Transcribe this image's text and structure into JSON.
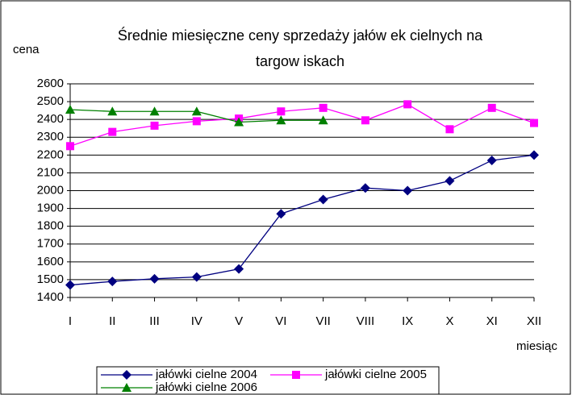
{
  "chart_data": {
    "type": "line",
    "title": [
      "Średnie miesięczne ceny sprzedaży jałów ek cielnych na",
      "targow iskach"
    ],
    "y_label": "cena",
    "x_label": "miesiąc",
    "categories": [
      "I",
      "II",
      "III",
      "IV",
      "V",
      "VI",
      "VII",
      "VIII",
      "IX",
      "X",
      "XI",
      "XII"
    ],
    "series": [
      {
        "name": "jałówki cielne 2004",
        "color": "#000080",
        "marker": "diamond",
        "values": [
          1470,
          1490,
          1505,
          1515,
          1560,
          1870,
          1950,
          2015,
          2000,
          2055,
          2170,
          2200
        ]
      },
      {
        "name": "jałówki cielne 2005",
        "color": "#ff00ff",
        "marker": "square",
        "values": [
          2250,
          2330,
          2365,
          2390,
          2405,
          2445,
          2465,
          2395,
          2485,
          2345,
          2465,
          2380
        ]
      },
      {
        "name": "jałówki cielne 2006",
        "color": "#008000",
        "marker": "triangle",
        "values": [
          2455,
          2445,
          2445,
          2445,
          2385,
          2395,
          2395,
          null,
          null,
          null,
          null,
          null
        ]
      }
    ],
    "ylim": [
      1400,
      2600
    ],
    "yticks": [
      1400,
      1500,
      1600,
      1700,
      1800,
      1900,
      2000,
      2100,
      2200,
      2300,
      2400,
      2500,
      2600
    ],
    "grid": true
  }
}
